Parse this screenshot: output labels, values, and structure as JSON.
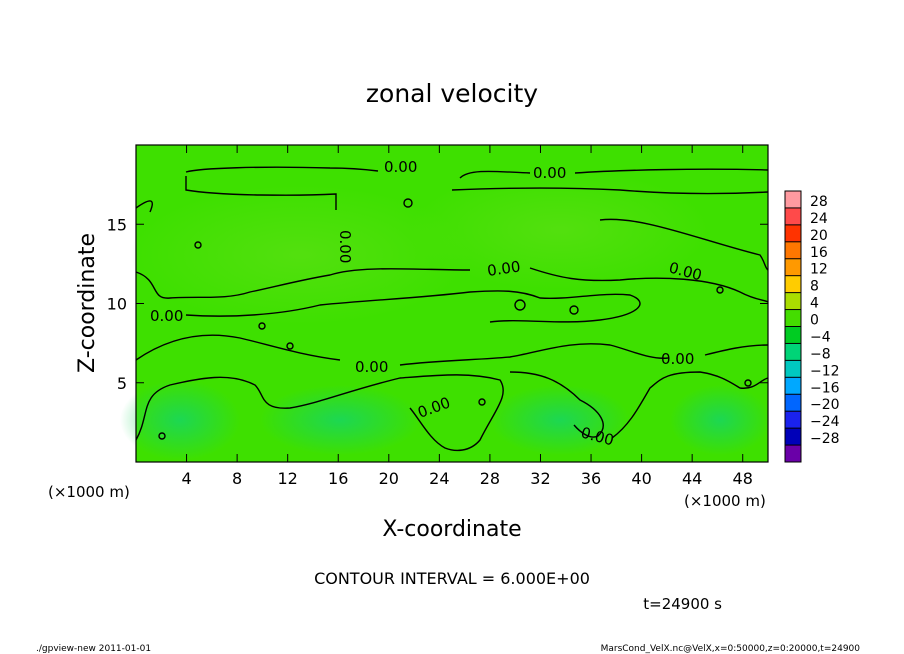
{
  "chart_data": {
    "type": "heatmap",
    "title": "zonal velocity",
    "xlabel": "X-coordinate",
    "ylabel": "Z-coordinate",
    "x_unit": "(×1000 m)",
    "y_unit": "(×1000 m)",
    "xlim": [
      0,
      50
    ],
    "ylim": [
      0,
      20
    ],
    "x_ticks": [
      4,
      8,
      12,
      16,
      20,
      24,
      28,
      32,
      36,
      40,
      44,
      48
    ],
    "y_ticks": [
      5,
      10,
      15
    ],
    "colorbar": {
      "levels": [
        28,
        24,
        20,
        16,
        12,
        8,
        4,
        0,
        -4,
        -8,
        -12,
        -16,
        -20,
        -24,
        -28
      ],
      "colors": [
        "#ff9aa0",
        "#ff4a4a",
        "#ff3300",
        "#ff7700",
        "#ff9900",
        "#ffcc00",
        "#aadd00",
        "#44dd00",
        "#00cc22",
        "#00d477",
        "#00c8c0",
        "#00a8ff",
        "#0066ff",
        "#1a22ee",
        "#0000b8",
        "#6a00a8"
      ]
    },
    "contour_labels": [
      "0.00",
      "0.00",
      "0.00",
      "0.00",
      "0.00",
      "0.00",
      "0.00",
      "0.00",
      "0.00",
      "0.00"
    ],
    "contour_interval_text": "CONTOUR INTERVAL = 6.000E+00",
    "time_text": "t=24900 s"
  },
  "footer": {
    "left": "./gpview-new  2011-01-01",
    "right": "MarsCond_VelX.nc@VelX,x=0:50000,z=0:20000,t=24900"
  }
}
